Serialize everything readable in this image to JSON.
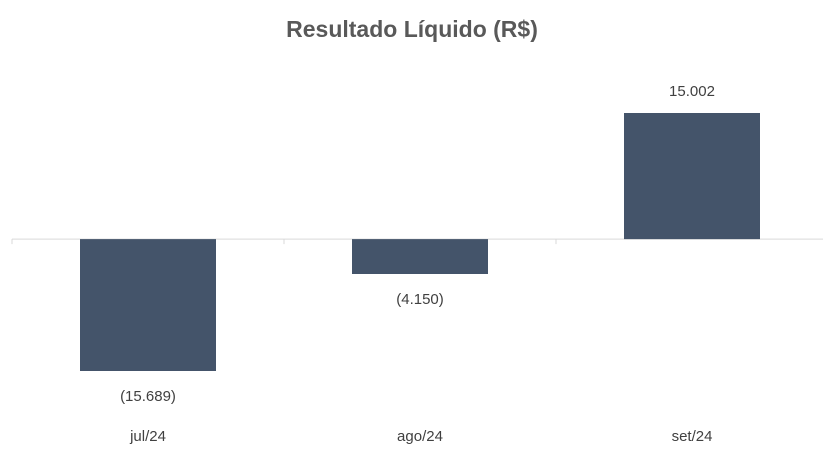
{
  "chart_data": {
    "type": "bar",
    "title": "Resultado Líquido (R$)",
    "categories": [
      "jul/24",
      "ago/24",
      "set/24"
    ],
    "values": [
      -15689,
      -4150,
      15002
    ],
    "value_labels": [
      "(15.689)",
      "(4.150)",
      "15.002"
    ],
    "color": "#44546a"
  }
}
